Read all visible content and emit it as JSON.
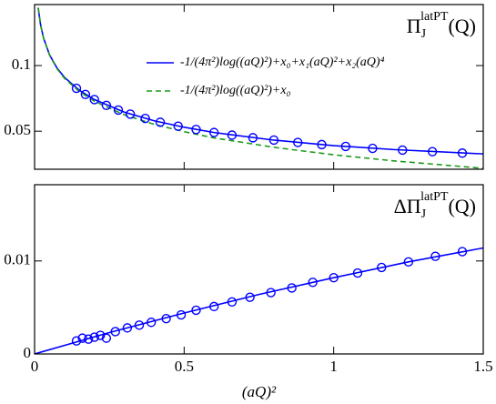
{
  "chart_data": [
    {
      "type": "line",
      "annotation": {
        "base": "Π",
        "sub": "J",
        "sup": "latPT",
        "tail": "(Q)"
      },
      "xlim": [
        0,
        1.5
      ],
      "xticks": [
        0,
        0.5,
        1,
        1.5
      ],
      "ylim": [
        0.021,
        0.1465
      ],
      "yticks": [
        0.05,
        0.1
      ],
      "legend": "upper right",
      "series": [
        {
          "name": "-1/(4π²)log((aQ)²)+x₀+x₁(aQ)²+x₂(aQ)⁴",
          "color": "#0000ff",
          "dash": "solid",
          "x": [
            0.012,
            0.02,
            0.03,
            0.05,
            0.075,
            0.1,
            0.15,
            0.2,
            0.3,
            0.4,
            0.5,
            0.6,
            0.8,
            1.0,
            1.2,
            1.5
          ],
          "values": [
            0.1441,
            0.1312,
            0.121,
            0.1082,
            0.0981,
            0.091,
            0.0811,
            0.0741,
            0.0645,
            0.0579,
            0.053,
            0.049,
            0.0432,
            0.039,
            0.036,
            0.0327
          ]
        },
        {
          "name": "-1/(4π²)log((aQ)²)+x₀",
          "color": "#1a9a1a",
          "dash": "dashed",
          "x": [
            0.012,
            0.02,
            0.03,
            0.05,
            0.075,
            0.1,
            0.15,
            0.2,
            0.3,
            0.4,
            0.5,
            0.6,
            0.8,
            1.0,
            1.2,
            1.5
          ],
          "values": [
            0.144,
            0.1311,
            0.1208,
            0.1079,
            0.0976,
            0.0903,
            0.0801,
            0.0728,
            0.0625,
            0.0552,
            0.0496,
            0.0449,
            0.0377,
            0.032,
            0.0274,
            0.0217
          ]
        },
        {
          "color": "#0000ff",
          "marker": "circle",
          "x": [
            0.14,
            0.17,
            0.2,
            0.24,
            0.28,
            0.32,
            0.37,
            0.42,
            0.48,
            0.54,
            0.6,
            0.66,
            0.73,
            0.8,
            0.88,
            0.96,
            1.04,
            1.13,
            1.23,
            1.33,
            1.43
          ],
          "values": [
            0.0827,
            0.078,
            0.0741,
            0.0697,
            0.0661,
            0.063,
            0.0597,
            0.0568,
            0.0538,
            0.0513,
            0.049,
            0.047,
            0.045,
            0.0432,
            0.0414,
            0.0398,
            0.0384,
            0.0369,
            0.0356,
            0.0344,
            0.0333
          ]
        }
      ]
    },
    {
      "type": "line",
      "annotation": {
        "base": "ΔΠ",
        "sub": "J",
        "sup": "latPT",
        "tail": "(Q)"
      },
      "xlabel": "(aQ)²",
      "xlim": [
        0,
        1.5
      ],
      "xticks": [
        0,
        0.5,
        1,
        1.5
      ],
      "ylim": [
        0,
        0.0182
      ],
      "yticks": [
        0,
        0.01
      ],
      "series": [
        {
          "color": "#0000ff",
          "dash": "solid",
          "x": [
            0,
            0.25,
            0.5,
            0.75,
            1.0,
            1.25,
            1.5
          ],
          "values": [
            0,
            0.0023,
            0.0044,
            0.0064,
            0.0082,
            0.0099,
            0.0114
          ]
        },
        {
          "color": "#0000ff",
          "marker": "circle",
          "x": [
            0.14,
            0.16,
            0.18,
            0.2,
            0.22,
            0.24,
            0.27,
            0.31,
            0.35,
            0.39,
            0.44,
            0.49,
            0.54,
            0.6,
            0.66,
            0.72,
            0.79,
            0.86,
            0.93,
            1.0,
            1.08,
            1.16,
            1.25,
            1.34,
            1.43
          ],
          "values": [
            0.0014,
            0.0017,
            0.0016,
            0.0018,
            0.002,
            0.0017,
            0.0024,
            0.0028,
            0.0031,
            0.0034,
            0.0038,
            0.0042,
            0.0047,
            0.0051,
            0.0056,
            0.0061,
            0.0066,
            0.0071,
            0.0077,
            0.0082,
            0.0087,
            0.0093,
            0.0099,
            0.0105,
            0.011
          ]
        }
      ]
    }
  ]
}
